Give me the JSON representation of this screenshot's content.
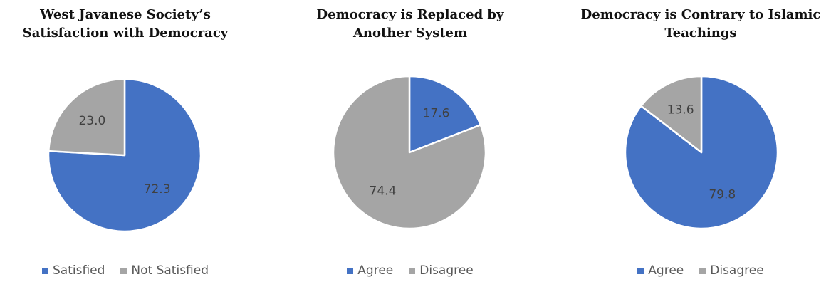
{
  "colors": {
    "blue": "#4472C4",
    "gray": "#A5A5A5",
    "label": "#404040"
  },
  "chart_data": [
    {
      "type": "pie",
      "title": [
        "West Javanese Society’s",
        "Satisfaction with Democracy"
      ],
      "slices": [
        {
          "label": "Satisfied",
          "value": 72.3,
          "display": "72.3",
          "color": "#4472C4"
        },
        {
          "label": "Not Satisfied",
          "value": 23.0,
          "display": "23.0",
          "color": "#A5A5A5"
        }
      ],
      "legend": [
        "Satisfied",
        "Not Satisfied"
      ],
      "legend_position": "bottom"
    },
    {
      "type": "pie",
      "title": [
        "Democracy is Replaced by",
        "Another System"
      ],
      "slices": [
        {
          "label": "Agree",
          "value": 17.6,
          "display": "17.6",
          "color": "#4472C4"
        },
        {
          "label": "Disagree",
          "value": 74.4,
          "display": "74.4",
          "color": "#A5A5A5"
        }
      ],
      "legend": [
        "Agree",
        "Disagree"
      ],
      "legend_position": "bottom"
    },
    {
      "type": "pie",
      "title": [
        "Democracy is Contrary to Islamic",
        "Teachings"
      ],
      "slices": [
        {
          "label": "Agree",
          "value": 79.8,
          "display": "79.8",
          "color": "#4472C4"
        },
        {
          "label": "Disagree",
          "value": 13.6,
          "display": "13.6",
          "color": "#A5A5A5"
        }
      ],
      "legend": [
        "Agree",
        "Disagree"
      ],
      "legend_position": "bottom"
    }
  ]
}
